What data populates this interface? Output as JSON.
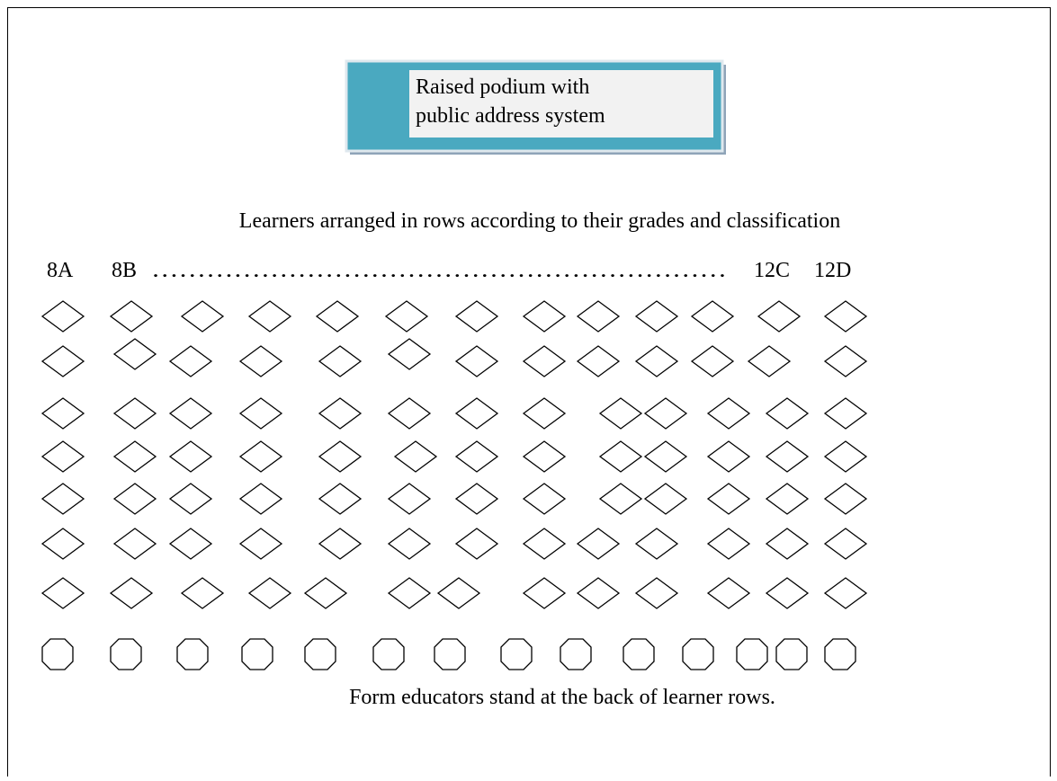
{
  "podium": {
    "label_line1": "Raised podium with",
    "label_line2": "public address system"
  },
  "caption": "Learners arranged in rows according to their grades and classification",
  "class_labels": {
    "first": "8A",
    "second": "8B",
    "dots": "………………………………………………………",
    "second_last": "12C",
    "last": "12D"
  },
  "footer": "Form educators stand at the back of learner rows."
}
